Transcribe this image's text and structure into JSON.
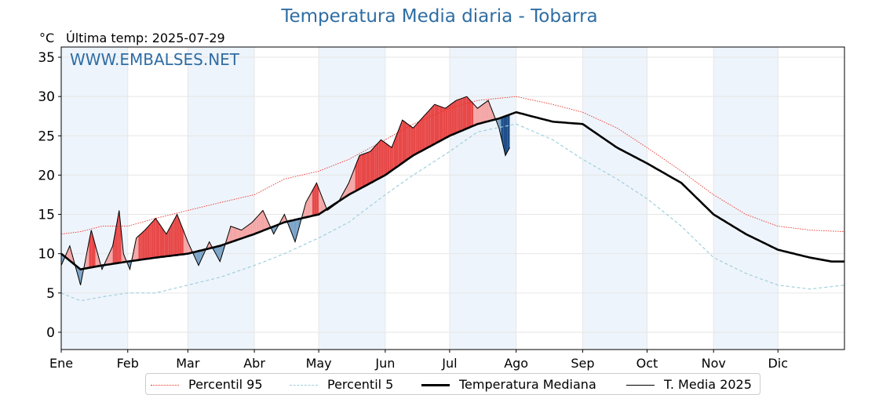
{
  "title": "Temperatura Media diaria - Tobarra",
  "unit_label": "°C",
  "last_temp_label": "Última temp: 2025-07-29",
  "watermark": "WWW.EMBALSES.NET",
  "legend": {
    "p95": "Percentil 95",
    "p5": "Percentil 5",
    "median": "Temperatura Mediana",
    "current": "T. Media 2025"
  },
  "colors": {
    "p95": "#e8312a",
    "p5": "#9fd0de",
    "median": "#000000",
    "current": "#000000",
    "above_fill": "#f4a6a6",
    "above_strong_fill": "#e84848",
    "below_fill": "#7aa4c8",
    "below_strong_fill": "#1f4e88",
    "month_band": "#eef4fb",
    "title": "#2f6da3"
  },
  "chart_data": {
    "type": "line",
    "title": "Temperatura Media diaria - Tobarra",
    "ylabel": "°C",
    "ylim": [
      -2.2,
      36.3
    ],
    "xlim": [
      1,
      366
    ],
    "yticks": [
      0,
      5,
      10,
      15,
      20,
      25,
      30,
      35
    ],
    "month_labels": [
      "Ene",
      "Feb",
      "Mar",
      "Abr",
      "May",
      "Jun",
      "Jul",
      "Ago",
      "Sep",
      "Oct",
      "Nov",
      "Dic"
    ],
    "month_start_days": [
      1,
      32,
      60,
      91,
      121,
      152,
      182,
      213,
      244,
      274,
      305,
      335
    ],
    "grid": true,
    "legend_position": "bottom",
    "series": [
      {
        "name": "Percentil 95",
        "key": "p95",
        "style": "dotted",
        "sample_days": [
          1,
          10,
          20,
          32,
          45,
          60,
          75,
          91,
          105,
          121,
          135,
          152,
          165,
          182,
          195,
          213,
          230,
          244,
          260,
          274,
          290,
          305,
          320,
          335,
          350,
          366
        ],
        "values": [
          12.5,
          12.8,
          13.5,
          13.5,
          14.5,
          15.5,
          16.5,
          17.5,
          19.5,
          20.5,
          22.0,
          24.5,
          26.5,
          28.5,
          29.5,
          30.0,
          29.0,
          28.0,
          26.0,
          23.5,
          20.5,
          17.5,
          15.0,
          13.5,
          13.0,
          12.8
        ]
      },
      {
        "name": "Percentil 5",
        "key": "p5",
        "style": "dashed",
        "sample_days": [
          1,
          10,
          20,
          32,
          45,
          60,
          75,
          91,
          105,
          121,
          135,
          152,
          165,
          182,
          195,
          213,
          230,
          244,
          260,
          274,
          290,
          305,
          320,
          335,
          350,
          366
        ],
        "values": [
          5.0,
          4.0,
          4.5,
          5.0,
          5.0,
          6.0,
          7.0,
          8.5,
          10.0,
          12.0,
          14.0,
          17.5,
          20.0,
          23.0,
          25.5,
          26.5,
          24.5,
          22.0,
          19.5,
          17.0,
          13.5,
          9.5,
          7.5,
          6.0,
          5.5,
          6.0
        ]
      },
      {
        "name": "Temperatura Mediana",
        "key": "median",
        "style": "solid-thick",
        "sample_days": [
          1,
          10,
          20,
          32,
          45,
          60,
          75,
          91,
          105,
          121,
          135,
          152,
          165,
          182,
          195,
          205,
          213,
          230,
          244,
          260,
          274,
          290,
          305,
          320,
          335,
          350,
          360,
          366
        ],
        "values": [
          10.0,
          8.0,
          8.5,
          9.0,
          9.5,
          10.0,
          11.0,
          12.5,
          14.0,
          15.0,
          17.5,
          20.0,
          22.5,
          25.0,
          26.5,
          27.2,
          28.0,
          26.8,
          26.5,
          23.5,
          21.5,
          19.0,
          15.0,
          12.5,
          10.5,
          9.5,
          9.0,
          9.0
        ]
      },
      {
        "name": "T. Media 2025",
        "key": "current",
        "style": "solid-thin",
        "sample_days": [
          1,
          5,
          10,
          15,
          20,
          25,
          28,
          30,
          33,
          36,
          40,
          45,
          50,
          55,
          60,
          65,
          70,
          75,
          80,
          85,
          90,
          95,
          100,
          105,
          110,
          115,
          120,
          125,
          130,
          135,
          140,
          145,
          150,
          155,
          160,
          165,
          170,
          175,
          180,
          185,
          190,
          195,
          200,
          205,
          208,
          210
        ],
        "values": [
          8.5,
          11.0,
          6.0,
          13.0,
          8.0,
          11.0,
          15.5,
          10.0,
          8.0,
          12.0,
          13.0,
          14.5,
          12.5,
          15.0,
          11.5,
          8.5,
          11.5,
          9.0,
          13.5,
          13.0,
          14.0,
          15.5,
          12.5,
          15.0,
          11.5,
          16.5,
          19.0,
          15.5,
          16.5,
          19.0,
          22.5,
          23.0,
          24.5,
          23.5,
          27.0,
          26.0,
          27.5,
          29.0,
          28.5,
          29.5,
          30.0,
          28.5,
          29.5,
          26.0,
          22.5,
          23.5
        ]
      }
    ]
  }
}
